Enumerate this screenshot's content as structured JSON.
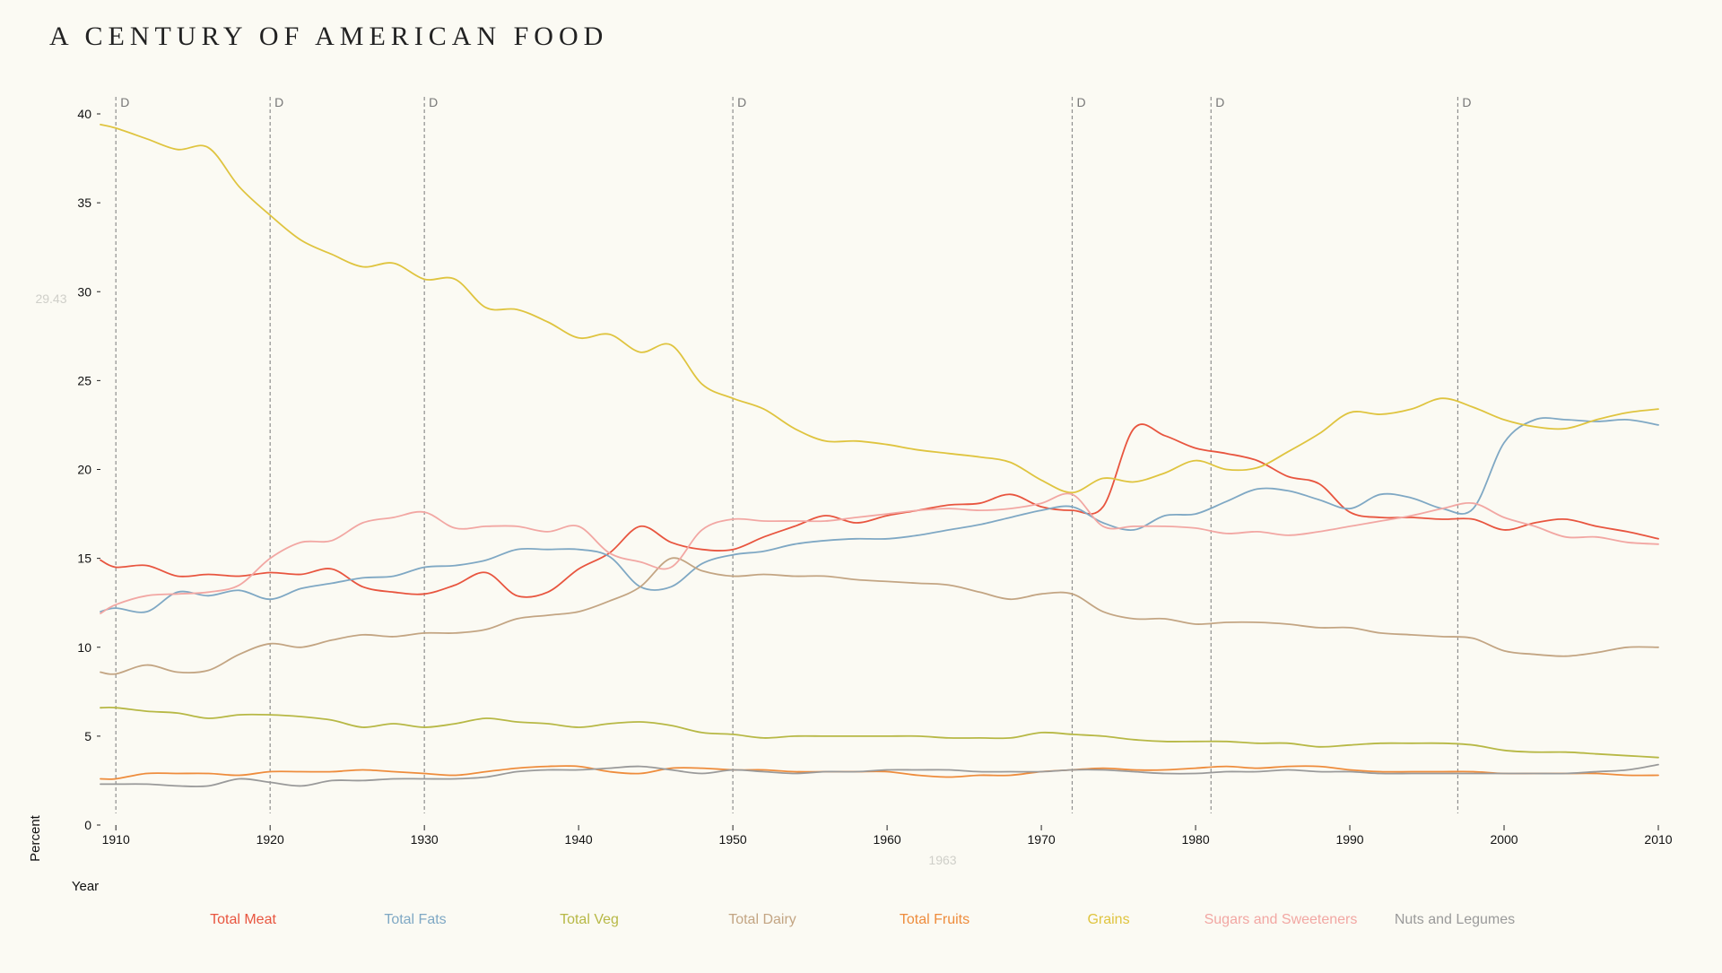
{
  "chart_data": {
    "type": "line",
    "title": "A CENTURY OF AMERICAN FOOD",
    "xlabel": "Year",
    "ylabel": "Percent",
    "xlim": [
      1909,
      2010
    ],
    "ylim": [
      0,
      40
    ],
    "x_ticks": [
      1910,
      1920,
      1930,
      1940,
      1950,
      1960,
      1970,
      1980,
      1990,
      2000,
      2010
    ],
    "y_ticks": [
      0,
      5,
      10,
      15,
      20,
      25,
      30,
      35,
      40
    ],
    "hover": {
      "value_label": "29.43",
      "year_label": "1963"
    },
    "annotations": [
      {
        "year": 1910,
        "label": "D"
      },
      {
        "year": 1920,
        "label": "D"
      },
      {
        "year": 1930,
        "label": "D"
      },
      {
        "year": 1950,
        "label": "D"
      },
      {
        "year": 1972,
        "label": "D"
      },
      {
        "year": 1981,
        "label": "D"
      },
      {
        "year": 1997,
        "label": "D"
      }
    ],
    "grid": false,
    "legend_placement": "bottom",
    "x": [
      1909,
      1910,
      1912,
      1914,
      1916,
      1918,
      1920,
      1922,
      1924,
      1926,
      1928,
      1930,
      1932,
      1934,
      1936,
      1938,
      1940,
      1942,
      1944,
      1946,
      1948,
      1950,
      1952,
      1954,
      1956,
      1958,
      1960,
      1962,
      1964,
      1966,
      1968,
      1970,
      1972,
      1974,
      1976,
      1978,
      1980,
      1982,
      1984,
      1986,
      1988,
      1990,
      1992,
      1994,
      1996,
      1998,
      2000,
      2002,
      2004,
      2006,
      2008,
      2010
    ],
    "series": [
      {
        "name": "Total Meat",
        "color": "#e8553f",
        "values": [
          14.9,
          14.5,
          14.6,
          14.0,
          14.1,
          14.0,
          14.2,
          14.1,
          14.4,
          13.4,
          13.1,
          13.0,
          13.5,
          14.2,
          12.9,
          13.1,
          14.4,
          15.3,
          16.8,
          15.9,
          15.5,
          15.5,
          16.2,
          16.8,
          17.4,
          17.0,
          17.4,
          17.7,
          18.0,
          18.1,
          18.6,
          17.9,
          17.7,
          17.9,
          22.3,
          21.9,
          21.2,
          20.9,
          20.5,
          19.6,
          19.2,
          17.6,
          17.3,
          17.3,
          17.2,
          17.2,
          16.6,
          17.0,
          17.2,
          16.8,
          16.5,
          16.1
        ]
      },
      {
        "name": "Total Fats",
        "color": "#7fa8c4",
        "values": [
          12.0,
          12.2,
          12.0,
          13.1,
          12.9,
          13.2,
          12.7,
          13.3,
          13.6,
          13.9,
          14.0,
          14.5,
          14.6,
          14.9,
          15.5,
          15.5,
          15.5,
          15.1,
          13.4,
          13.4,
          14.7,
          15.2,
          15.4,
          15.8,
          16.0,
          16.1,
          16.1,
          16.3,
          16.6,
          16.9,
          17.3,
          17.7,
          17.9,
          17.0,
          16.6,
          17.4,
          17.5,
          18.2,
          18.9,
          18.8,
          18.3,
          17.8,
          18.6,
          18.4,
          17.8,
          17.8,
          21.5,
          22.8,
          22.8,
          22.7,
          22.8,
          22.5
        ]
      },
      {
        "name": "Total Veg",
        "color": "#b7b845",
        "values": [
          6.6,
          6.6,
          6.4,
          6.3,
          6.0,
          6.2,
          6.2,
          6.1,
          5.9,
          5.5,
          5.7,
          5.5,
          5.7,
          6.0,
          5.8,
          5.7,
          5.5,
          5.7,
          5.8,
          5.6,
          5.2,
          5.1,
          4.9,
          5.0,
          5.0,
          5.0,
          5.0,
          5.0,
          4.9,
          4.9,
          4.9,
          5.2,
          5.1,
          5.0,
          4.8,
          4.7,
          4.7,
          4.7,
          4.6,
          4.6,
          4.4,
          4.5,
          4.6,
          4.6,
          4.6,
          4.5,
          4.2,
          4.1,
          4.1,
          4.0,
          3.9,
          3.8
        ]
      },
      {
        "name": "Total Dairy",
        "color": "#c3a583",
        "values": [
          8.6,
          8.5,
          9.0,
          8.6,
          8.7,
          9.6,
          10.2,
          10.0,
          10.4,
          10.7,
          10.6,
          10.8,
          10.8,
          11.0,
          11.6,
          11.8,
          12.0,
          12.6,
          13.4,
          15.0,
          14.3,
          14.0,
          14.1,
          14.0,
          14.0,
          13.8,
          13.7,
          13.6,
          13.5,
          13.1,
          12.7,
          13.0,
          13.0,
          12.0,
          11.6,
          11.6,
          11.3,
          11.4,
          11.4,
          11.3,
          11.1,
          11.1,
          10.8,
          10.7,
          10.6,
          10.5,
          9.8,
          9.6,
          9.5,
          9.7,
          10.0,
          10.0
        ]
      },
      {
        "name": "Total Fruits",
        "color": "#ee8c3c",
        "values": [
          2.6,
          2.6,
          2.9,
          2.9,
          2.9,
          2.8,
          3.0,
          3.0,
          3.0,
          3.1,
          3.0,
          2.9,
          2.8,
          3.0,
          3.2,
          3.3,
          3.3,
          3.0,
          2.9,
          3.2,
          3.2,
          3.1,
          3.1,
          3.0,
          3.0,
          3.0,
          3.0,
          2.8,
          2.7,
          2.8,
          2.8,
          3.0,
          3.1,
          3.2,
          3.1,
          3.1,
          3.2,
          3.3,
          3.2,
          3.3,
          3.3,
          3.1,
          3.0,
          3.0,
          3.0,
          3.0,
          2.9,
          2.9,
          2.9,
          2.9,
          2.8,
          2.8
        ]
      },
      {
        "name": "Grains",
        "color": "#dfc43f",
        "values": [
          39.4,
          39.2,
          38.6,
          38.0,
          38.1,
          35.9,
          34.3,
          32.9,
          32.1,
          31.4,
          31.6,
          30.7,
          30.7,
          29.1,
          29.0,
          28.3,
          27.4,
          27.6,
          26.6,
          27.0,
          24.8,
          24.0,
          23.4,
          22.3,
          21.6,
          21.6,
          21.4,
          21.1,
          20.9,
          20.7,
          20.4,
          19.4,
          18.7,
          19.5,
          19.3,
          19.8,
          20.5,
          20.0,
          20.1,
          21.0,
          22.0,
          23.2,
          23.1,
          23.4,
          24.0,
          23.5,
          22.8,
          22.4,
          22.3,
          22.8,
          23.2,
          23.4
        ]
      },
      {
        "name": "Sugars and Sweeteners",
        "color": "#f2a7a3",
        "values": [
          11.9,
          12.4,
          12.9,
          13.0,
          13.1,
          13.5,
          15.0,
          15.9,
          16.0,
          17.0,
          17.3,
          17.6,
          16.7,
          16.8,
          16.8,
          16.5,
          16.8,
          15.3,
          14.8,
          14.5,
          16.6,
          17.2,
          17.1,
          17.1,
          17.1,
          17.3,
          17.5,
          17.7,
          17.8,
          17.7,
          17.8,
          18.1,
          18.6,
          16.8,
          16.8,
          16.8,
          16.7,
          16.4,
          16.5,
          16.3,
          16.5,
          16.8,
          17.1,
          17.4,
          17.8,
          18.1,
          17.3,
          16.8,
          16.2,
          16.2,
          15.9,
          15.8
        ]
      },
      {
        "name": "Nuts and Legumes",
        "color": "#9a9a9a",
        "values": [
          2.3,
          2.3,
          2.3,
          2.2,
          2.2,
          2.6,
          2.4,
          2.2,
          2.5,
          2.5,
          2.6,
          2.6,
          2.6,
          2.7,
          3.0,
          3.1,
          3.1,
          3.2,
          3.3,
          3.1,
          2.9,
          3.1,
          3.0,
          2.9,
          3.0,
          3.0,
          3.1,
          3.1,
          3.1,
          3.0,
          3.0,
          3.0,
          3.1,
          3.1,
          3.0,
          2.9,
          2.9,
          3.0,
          3.0,
          3.1,
          3.0,
          3.0,
          2.9,
          2.9,
          2.9,
          2.9,
          2.9,
          2.9,
          2.9,
          3.0,
          3.1,
          3.4
        ]
      }
    ]
  }
}
